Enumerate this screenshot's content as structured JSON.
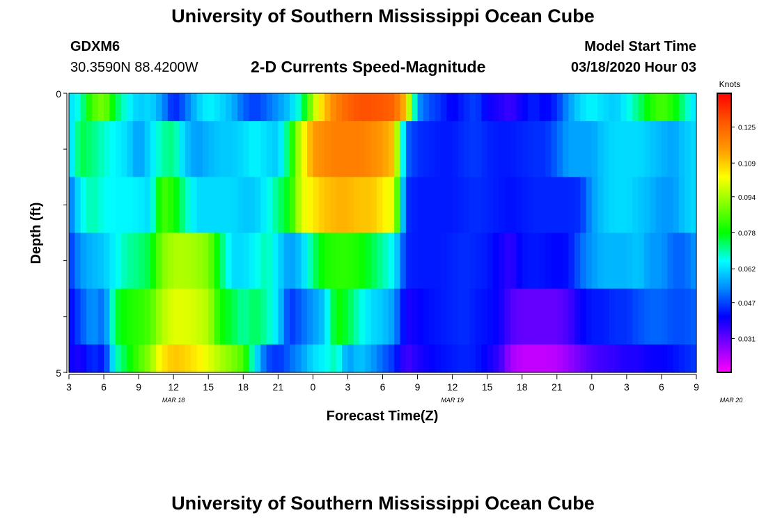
{
  "page": {
    "title_top": "University of Southern Mississippi Ocean Cube",
    "title_bottom": "University of Southern Mississippi Ocean Cube",
    "station_id": "GDXM6",
    "station_coords": "30.3590N 88.4200W",
    "subtitle": "2-D Currents Speed-Magnitude",
    "start_label": "Model Start Time",
    "start_value": "03/18/2020 Hour 03"
  },
  "colors": {
    "stops": [
      "#ff00ff",
      "#8000ff",
      "#0000ff",
      "#0088ff",
      "#00ffff",
      "#00ff00",
      "#80ff00",
      "#ffff00",
      "#ff9900",
      "#ff5500",
      "#ff0000"
    ],
    "frame": "#000000"
  },
  "chart_data": {
    "type": "heatmap",
    "title": "2-D Currents Speed-Magnitude",
    "xlabel": "Forecast Time(Z)",
    "ylabel": "Depth (ft)",
    "ylim": [
      0,
      5
    ],
    "y_ticks": [
      "0",
      "5"
    ],
    "x_tick_labels": [
      "3",
      "6",
      "9",
      "12",
      "15",
      "18",
      "21",
      "0",
      "3",
      "6",
      "9",
      "12",
      "15",
      "18",
      "21",
      "0",
      "3",
      "6",
      "9"
    ],
    "date_labels": [
      {
        "text": "MAR 18",
        "hour": 12
      },
      {
        "text": "MAR 19",
        "hour": 36
      },
      {
        "text": "MAR 20",
        "hour": 60
      }
    ],
    "x_range_hours": [
      0,
      54
    ],
    "colorbar": {
      "units": "Knots",
      "min": 0.016,
      "max": 0.14,
      "ticks": [
        0.031,
        0.047,
        0.062,
        0.078,
        0.094,
        0.109,
        0.125
      ],
      "tick_labels": [
        "0.031",
        "0.047",
        "0.062",
        "0.078",
        "0.094",
        "0.109",
        "0.125"
      ]
    },
    "depth_levels": [
      "0.0-0.5",
      "0.5-1.5",
      "1.5-2.5",
      "2.5-3.5",
      "3.5-4.5",
      "4.5-5.0"
    ],
    "hour_step": 0.5,
    "anchor_hours": [
      0,
      1,
      2,
      3,
      4,
      5,
      6,
      7,
      8,
      9,
      10,
      11,
      12,
      13,
      14,
      15,
      16,
      17,
      18,
      19,
      20,
      21,
      22,
      23,
      24,
      25,
      26,
      27,
      28,
      29,
      30,
      31,
      32,
      33,
      34,
      35,
      36,
      37,
      38,
      39,
      40,
      41,
      42,
      43,
      44,
      45,
      46,
      47,
      48,
      49,
      50,
      51,
      52,
      53,
      54
    ],
    "values": [
      [
        0.062,
        0.068,
        0.085,
        0.09,
        0.075,
        0.066,
        0.06,
        0.062,
        0.055,
        0.043,
        0.05,
        0.06,
        0.065,
        0.062,
        0.058,
        0.05,
        0.046,
        0.05,
        0.055,
        0.06,
        0.07,
        0.095,
        0.11,
        0.12,
        0.125,
        0.128,
        0.128,
        0.127,
        0.125,
        0.11,
        0.055,
        0.048,
        0.045,
        0.04,
        0.044,
        0.047,
        0.04,
        0.038,
        0.035,
        0.04,
        0.044,
        0.04,
        0.045,
        0.055,
        0.062,
        0.065,
        0.062,
        0.06,
        0.065,
        0.072,
        0.08,
        0.085,
        0.08,
        0.07,
        0.062
      ],
      [
        0.06,
        0.075,
        0.072,
        0.068,
        0.065,
        0.062,
        0.055,
        0.062,
        0.07,
        0.072,
        0.06,
        0.055,
        0.058,
        0.06,
        0.06,
        0.062,
        0.065,
        0.062,
        0.06,
        0.075,
        0.1,
        0.115,
        0.118,
        0.12,
        0.12,
        0.12,
        0.118,
        0.115,
        0.11,
        0.05,
        0.045,
        0.044,
        0.043,
        0.043,
        0.045,
        0.046,
        0.044,
        0.043,
        0.043,
        0.044,
        0.045,
        0.045,
        0.05,
        0.056,
        0.056,
        0.056,
        0.06,
        0.062,
        0.062,
        0.062,
        0.06,
        0.058,
        0.056,
        0.06,
        0.062
      ],
      [
        0.05,
        0.065,
        0.07,
        0.066,
        0.065,
        0.065,
        0.064,
        0.062,
        0.085,
        0.08,
        0.07,
        0.062,
        0.062,
        0.062,
        0.062,
        0.06,
        0.06,
        0.065,
        0.072,
        0.078,
        0.1,
        0.105,
        0.11,
        0.112,
        0.112,
        0.11,
        0.11,
        0.105,
        0.1,
        0.045,
        0.043,
        0.043,
        0.043,
        0.043,
        0.044,
        0.045,
        0.044,
        0.043,
        0.042,
        0.043,
        0.044,
        0.044,
        0.044,
        0.044,
        0.045,
        0.055,
        0.06,
        0.062,
        0.062,
        0.06,
        0.058,
        0.055,
        0.055,
        0.06,
        0.062
      ],
      [
        0.045,
        0.055,
        0.058,
        0.06,
        0.065,
        0.07,
        0.072,
        0.075,
        0.09,
        0.095,
        0.095,
        0.093,
        0.09,
        0.075,
        0.062,
        0.062,
        0.065,
        0.07,
        0.062,
        0.055,
        0.06,
        0.072,
        0.08,
        0.082,
        0.082,
        0.08,
        0.075,
        0.07,
        0.065,
        0.044,
        0.043,
        0.043,
        0.043,
        0.044,
        0.045,
        0.044,
        0.043,
        0.04,
        0.036,
        0.042,
        0.043,
        0.042,
        0.041,
        0.042,
        0.05,
        0.055,
        0.058,
        0.058,
        0.058,
        0.06,
        0.055,
        0.055,
        0.05,
        0.05,
        0.055
      ],
      [
        0.04,
        0.048,
        0.055,
        0.05,
        0.075,
        0.08,
        0.082,
        0.085,
        0.095,
        0.1,
        0.1,
        0.098,
        0.095,
        0.08,
        0.075,
        0.07,
        0.074,
        0.07,
        0.062,
        0.045,
        0.05,
        0.055,
        0.06,
        0.08,
        0.075,
        0.068,
        0.062,
        0.06,
        0.055,
        0.038,
        0.04,
        0.042,
        0.043,
        0.044,
        0.045,
        0.043,
        0.042,
        0.04,
        0.033,
        0.031,
        0.031,
        0.031,
        0.031,
        0.034,
        0.04,
        0.043,
        0.043,
        0.045,
        0.045,
        0.048,
        0.05,
        0.05,
        0.048,
        0.048,
        0.05
      ],
      [
        0.04,
        0.038,
        0.045,
        0.042,
        0.068,
        0.076,
        0.085,
        0.092,
        0.105,
        0.11,
        0.108,
        0.105,
        0.1,
        0.095,
        0.09,
        0.085,
        0.065,
        0.048,
        0.045,
        0.05,
        0.055,
        0.062,
        0.065,
        0.07,
        0.055,
        0.06,
        0.056,
        0.05,
        0.045,
        0.034,
        0.038,
        0.04,
        0.042,
        0.043,
        0.044,
        0.043,
        0.04,
        0.036,
        0.025,
        0.022,
        0.022,
        0.022,
        0.023,
        0.026,
        0.03,
        0.033,
        0.035,
        0.036,
        0.038,
        0.038,
        0.04,
        0.04,
        0.042,
        0.044,
        0.046
      ]
    ]
  }
}
